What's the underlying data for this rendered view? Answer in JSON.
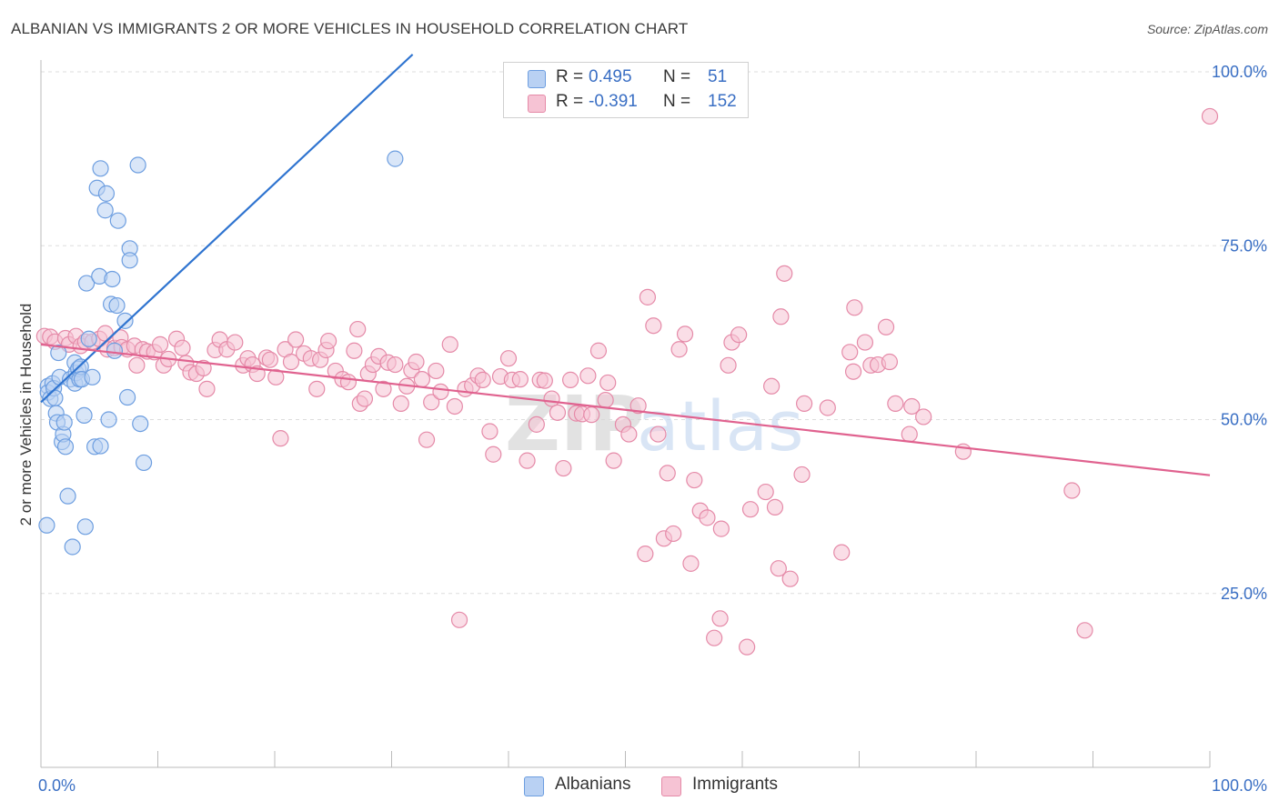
{
  "title": "ALBANIAN VS IMMIGRANTS 2 OR MORE VEHICLES IN HOUSEHOLD CORRELATION CHART",
  "source": "Source: ZipAtlas.com",
  "watermark": "ZIPatlas",
  "colors": {
    "albanians": "#6d9ee0",
    "albanians_fill": "#b9d1f3",
    "immigrants": "#e58aa8",
    "immigrants_fill": "#f6c3d4",
    "blue_line": "#2f74d0",
    "pink_line": "#e0628f",
    "axis_label": "#3a6fc4",
    "grid": "#dddddd"
  },
  "legend": {
    "rows": [
      {
        "r_label": "R =",
        "r_value": "0.495",
        "n_label": "N =",
        "n_value": "51"
      },
      {
        "r_label": "R =",
        "r_value": "-0.391",
        "n_label": "N =",
        "n_value": "152"
      }
    ]
  },
  "bottom_legend": {
    "albanians": "Albanians",
    "immigrants": "Immigrants"
  },
  "chart_data": {
    "type": "scatter",
    "xlabel": "",
    "ylabel": "2 or more Vehicles in Household",
    "xlim": [
      0,
      100
    ],
    "ylim": [
      0,
      105
    ],
    "x_tick_labels": [
      "0.0%",
      "100.0%"
    ],
    "y_tick_labels": [
      "25.0%",
      "50.0%",
      "75.0%",
      "100.0%"
    ],
    "y_ticks": [
      25,
      50,
      75,
      100
    ],
    "grid": true,
    "series": [
      {
        "name": "Albanians",
        "r": 0.495,
        "n": 51,
        "trend": {
          "x1": 0,
          "y1": 52.5,
          "x2": 31.8,
          "y2": 102.5
        },
        "points": [
          [
            0.6,
            54.8
          ],
          [
            0.6,
            53.9
          ],
          [
            0.8,
            53.0
          ],
          [
            1.0,
            55.2
          ],
          [
            1.1,
            54.5
          ],
          [
            1.2,
            53.1
          ],
          [
            0.5,
            34.8
          ],
          [
            1.3,
            50.9
          ],
          [
            1.4,
            49.6
          ],
          [
            1.6,
            56.1
          ],
          [
            1.5,
            59.6
          ],
          [
            1.8,
            46.8
          ],
          [
            1.9,
            47.9
          ],
          [
            2.0,
            49.6
          ],
          [
            2.1,
            46.1
          ],
          [
            2.3,
            39.0
          ],
          [
            2.5,
            55.8
          ],
          [
            2.7,
            31.7
          ],
          [
            2.9,
            55.2
          ],
          [
            2.9,
            58.2
          ],
          [
            3.0,
            56.7
          ],
          [
            3.2,
            57.3
          ],
          [
            3.3,
            55.8
          ],
          [
            3.4,
            57.6
          ],
          [
            3.5,
            55.8
          ],
          [
            3.7,
            50.6
          ],
          [
            3.8,
            34.6
          ],
          [
            3.9,
            69.6
          ],
          [
            4.1,
            61.6
          ],
          [
            4.4,
            56.1
          ],
          [
            4.6,
            46.1
          ],
          [
            4.8,
            83.3
          ],
          [
            5.0,
            70.6
          ],
          [
            5.1,
            86.1
          ],
          [
            5.1,
            46.2
          ],
          [
            5.5,
            80.1
          ],
          [
            5.6,
            82.5
          ],
          [
            5.8,
            50.0
          ],
          [
            6.0,
            66.6
          ],
          [
            6.1,
            70.2
          ],
          [
            6.3,
            59.9
          ],
          [
            6.5,
            66.4
          ],
          [
            6.6,
            78.6
          ],
          [
            7.2,
            64.2
          ],
          [
            7.4,
            53.2
          ],
          [
            7.6,
            74.6
          ],
          [
            7.6,
            72.9
          ],
          [
            8.3,
            86.6
          ],
          [
            8.5,
            49.4
          ],
          [
            8.8,
            43.8
          ],
          [
            30.3,
            87.5
          ]
        ]
      },
      {
        "name": "Immigrants",
        "r": -0.391,
        "n": 152,
        "trend": {
          "x1": 0,
          "y1": 60.8,
          "x2": 100,
          "y2": 42.0
        },
        "points": [
          [
            0.3,
            62.0
          ],
          [
            0.8,
            61.9
          ],
          [
            1.2,
            61.2
          ],
          [
            2.1,
            61.7
          ],
          [
            2.4,
            60.8
          ],
          [
            3.0,
            62.0
          ],
          [
            3.4,
            60.6
          ],
          [
            3.8,
            61.2
          ],
          [
            4.4,
            61.2
          ],
          [
            5.0,
            61.6
          ],
          [
            5.5,
            62.4
          ],
          [
            5.7,
            60.1
          ],
          [
            6.3,
            60.3
          ],
          [
            6.8,
            61.8
          ],
          [
            6.9,
            60.4
          ],
          [
            7.4,
            60.1
          ],
          [
            8.0,
            60.6
          ],
          [
            8.2,
            57.8
          ],
          [
            8.7,
            60.1
          ],
          [
            9.1,
            59.8
          ],
          [
            9.7,
            59.7
          ],
          [
            10.2,
            60.8
          ],
          [
            10.5,
            57.8
          ],
          [
            10.9,
            58.7
          ],
          [
            11.6,
            61.6
          ],
          [
            12.1,
            60.3
          ],
          [
            12.4,
            58.1
          ],
          [
            12.8,
            56.8
          ],
          [
            13.3,
            56.6
          ],
          [
            13.9,
            57.4
          ],
          [
            14.2,
            54.4
          ],
          [
            14.9,
            60.0
          ],
          [
            15.3,
            61.5
          ],
          [
            15.9,
            60.1
          ],
          [
            16.6,
            61.1
          ],
          [
            17.3,
            57.8
          ],
          [
            17.7,
            58.8
          ],
          [
            18.1,
            57.9
          ],
          [
            18.5,
            56.6
          ],
          [
            19.3,
            58.9
          ],
          [
            19.6,
            58.6
          ],
          [
            20.1,
            56.1
          ],
          [
            20.5,
            47.3
          ],
          [
            20.9,
            60.1
          ],
          [
            21.4,
            58.3
          ],
          [
            21.8,
            61.5
          ],
          [
            22.5,
            59.5
          ],
          [
            23.1,
            58.8
          ],
          [
            23.6,
            54.4
          ],
          [
            23.9,
            58.6
          ],
          [
            24.4,
            60.0
          ],
          [
            24.6,
            61.3
          ],
          [
            25.2,
            57.0
          ],
          [
            25.8,
            55.8
          ],
          [
            26.3,
            55.4
          ],
          [
            26.8,
            59.9
          ],
          [
            27.1,
            63.0
          ],
          [
            27.3,
            52.3
          ],
          [
            27.7,
            53.0
          ],
          [
            28.0,
            56.6
          ],
          [
            28.4,
            57.9
          ],
          [
            28.9,
            59.1
          ],
          [
            29.3,
            54.4
          ],
          [
            29.7,
            58.2
          ],
          [
            30.3,
            57.9
          ],
          [
            30.8,
            52.3
          ],
          [
            31.3,
            54.8
          ],
          [
            31.7,
            57.1
          ],
          [
            32.1,
            58.3
          ],
          [
            32.6,
            55.8
          ],
          [
            33.0,
            47.1
          ],
          [
            33.4,
            52.5
          ],
          [
            33.8,
            57.0
          ],
          [
            34.2,
            54.0
          ],
          [
            35.0,
            60.8
          ],
          [
            35.4,
            51.9
          ],
          [
            35.8,
            21.2
          ],
          [
            36.3,
            54.4
          ],
          [
            36.9,
            54.9
          ],
          [
            37.4,
            56.3
          ],
          [
            37.8,
            55.7
          ],
          [
            38.4,
            48.3
          ],
          [
            38.7,
            45.0
          ],
          [
            39.3,
            56.2
          ],
          [
            40.0,
            58.8
          ],
          [
            40.3,
            55.7
          ],
          [
            41.0,
            55.8
          ],
          [
            41.6,
            44.1
          ],
          [
            42.4,
            49.3
          ],
          [
            42.7,
            55.7
          ],
          [
            43.1,
            55.6
          ],
          [
            43.7,
            53.0
          ],
          [
            44.2,
            51.0
          ],
          [
            44.7,
            43.0
          ],
          [
            45.3,
            55.7
          ],
          [
            45.8,
            50.9
          ],
          [
            46.3,
            50.8
          ],
          [
            46.8,
            56.3
          ],
          [
            47.1,
            50.7
          ],
          [
            47.7,
            59.9
          ],
          [
            48.3,
            52.8
          ],
          [
            48.5,
            55.3
          ],
          [
            49.0,
            44.1
          ],
          [
            49.8,
            49.3
          ],
          [
            50.3,
            47.9
          ],
          [
            51.1,
            52.0
          ],
          [
            51.7,
            30.7
          ],
          [
            51.9,
            67.6
          ],
          [
            52.4,
            63.5
          ],
          [
            52.8,
            47.9
          ],
          [
            53.3,
            32.9
          ],
          [
            53.6,
            42.3
          ],
          [
            54.1,
            33.6
          ],
          [
            54.6,
            60.1
          ],
          [
            55.1,
            62.3
          ],
          [
            55.6,
            29.3
          ],
          [
            55.9,
            41.3
          ],
          [
            56.4,
            36.9
          ],
          [
            57.0,
            35.9
          ],
          [
            57.6,
            18.6
          ],
          [
            58.1,
            21.4
          ],
          [
            58.2,
            34.3
          ],
          [
            58.8,
            57.8
          ],
          [
            59.1,
            61.1
          ],
          [
            59.7,
            62.2
          ],
          [
            60.4,
            17.3
          ],
          [
            60.7,
            37.1
          ],
          [
            62.0,
            39.6
          ],
          [
            62.5,
            54.8
          ],
          [
            62.8,
            37.4
          ],
          [
            63.1,
            28.6
          ],
          [
            63.3,
            64.8
          ],
          [
            63.6,
            71.0
          ],
          [
            64.1,
            27.1
          ],
          [
            65.1,
            42.1
          ],
          [
            65.3,
            52.3
          ],
          [
            67.3,
            51.7
          ],
          [
            68.5,
            30.9
          ],
          [
            69.2,
            59.7
          ],
          [
            69.5,
            56.9
          ],
          [
            69.6,
            66.1
          ],
          [
            70.5,
            61.1
          ],
          [
            71.0,
            57.8
          ],
          [
            71.6,
            57.9
          ],
          [
            72.3,
            63.3
          ],
          [
            72.6,
            58.3
          ],
          [
            73.1,
            52.3
          ],
          [
            74.3,
            47.9
          ],
          [
            74.5,
            51.9
          ],
          [
            75.5,
            50.4
          ],
          [
            78.9,
            45.4
          ],
          [
            88.2,
            39.8
          ],
          [
            89.3,
            19.7
          ],
          [
            100.0,
            93.6
          ]
        ]
      }
    ]
  }
}
